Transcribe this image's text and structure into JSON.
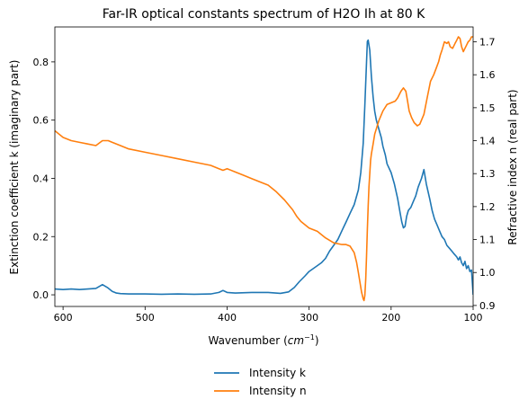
{
  "chart_data": {
    "type": "line",
    "title": "Far-IR optical constants spectrum of H2O Ih at 80 K",
    "xlabel": "Wavenumber",
    "xlabel_unit": "cm",
    "xlabel_unit_exp": "−1",
    "ylabel": "Extinction coefficient k (imaginary part)",
    "ylabel_right": "Refractive index n (real part)",
    "xlim": [
      610,
      100
    ],
    "x_inverted": true,
    "ylim": [
      -0.04,
      0.92
    ],
    "ylim_right": [
      0.897,
      1.745
    ],
    "xticks": [
      600,
      500,
      400,
      300,
      200,
      100
    ],
    "yticks": [
      0.0,
      0.2,
      0.4,
      0.6,
      0.8
    ],
    "yticks_right": [
      0.9,
      1.0,
      1.1,
      1.2,
      1.3,
      1.4,
      1.5,
      1.6,
      1.7
    ],
    "legend_position": "below",
    "series": [
      {
        "name": "Intensity k",
        "axis": "left",
        "color": "#1f77b4",
        "x": [
          610,
          600,
          590,
          580,
          570,
          560,
          552,
          546,
          540,
          535,
          530,
          520,
          500,
          480,
          460,
          440,
          420,
          410,
          405,
          400,
          390,
          370,
          350,
          335,
          325,
          318,
          312,
          305,
          300,
          295,
          290,
          285,
          280,
          275,
          270,
          265,
          260,
          255,
          250,
          245,
          240,
          237,
          234,
          232,
          230,
          229,
          228,
          226,
          224,
          222,
          220,
          218,
          215,
          212,
          210,
          207,
          205,
          200,
          196,
          192,
          189,
          187,
          185,
          183,
          181,
          179,
          176,
          173,
          170,
          167,
          163,
          160,
          157,
          153,
          150,
          147,
          144,
          141,
          138,
          135,
          132,
          129,
          126,
          123,
          120,
          118,
          116,
          114,
          112,
          110,
          108,
          106,
          104,
          102,
          100
        ],
        "values": [
          0.02,
          0.018,
          0.02,
          0.018,
          0.02,
          0.022,
          0.035,
          0.025,
          0.012,
          0.006,
          0.004,
          0.003,
          0.003,
          0.002,
          0.003,
          0.002,
          0.003,
          0.008,
          0.015,
          0.008,
          0.006,
          0.008,
          0.008,
          0.005,
          0.01,
          0.025,
          0.045,
          0.065,
          0.08,
          0.09,
          0.1,
          0.11,
          0.125,
          0.15,
          0.17,
          0.19,
          0.22,
          0.25,
          0.28,
          0.31,
          0.36,
          0.42,
          0.52,
          0.65,
          0.8,
          0.87,
          0.875,
          0.84,
          0.75,
          0.68,
          0.63,
          0.6,
          0.57,
          0.54,
          0.51,
          0.48,
          0.45,
          0.42,
          0.38,
          0.33,
          0.28,
          0.25,
          0.23,
          0.235,
          0.27,
          0.29,
          0.3,
          0.32,
          0.34,
          0.37,
          0.4,
          0.43,
          0.38,
          0.33,
          0.29,
          0.26,
          0.24,
          0.22,
          0.2,
          0.19,
          0.17,
          0.16,
          0.15,
          0.14,
          0.13,
          0.12,
          0.13,
          0.11,
          0.1,
          0.115,
          0.09,
          0.1,
          0.08,
          0.085,
          0.0
        ]
      },
      {
        "name": "Intensity n",
        "axis": "right",
        "color": "#ff7f0e",
        "x": [
          610,
          600,
          590,
          580,
          570,
          560,
          552,
          545,
          540,
          530,
          520,
          500,
          480,
          460,
          440,
          420,
          410,
          405,
          400,
          390,
          380,
          370,
          360,
          350,
          340,
          330,
          320,
          315,
          310,
          300,
          290,
          280,
          270,
          260,
          255,
          250,
          245,
          242,
          240,
          238,
          236,
          234,
          233,
          232,
          231,
          230,
          229,
          228,
          227,
          226,
          225,
          224,
          222,
          220,
          215,
          210,
          205,
          200,
          195,
          192,
          188,
          185,
          182,
          180,
          178,
          175,
          172,
          168,
          165,
          160,
          156,
          152,
          148,
          145,
          142,
          140,
          138,
          135,
          132,
          130,
          128,
          125,
          122,
          120,
          118,
          116,
          114,
          112,
          110,
          108,
          106,
          104,
          102,
          100
        ],
        "values": [
          1.43,
          1.41,
          1.4,
          1.395,
          1.39,
          1.385,
          1.4,
          1.4,
          1.395,
          1.385,
          1.375,
          1.365,
          1.355,
          1.345,
          1.335,
          1.325,
          1.315,
          1.31,
          1.315,
          1.305,
          1.295,
          1.285,
          1.275,
          1.265,
          1.245,
          1.22,
          1.19,
          1.17,
          1.155,
          1.135,
          1.125,
          1.105,
          1.09,
          1.085,
          1.085,
          1.08,
          1.06,
          1.03,
          1.0,
          0.97,
          0.94,
          0.92,
          0.915,
          0.93,
          0.98,
          1.05,
          1.13,
          1.2,
          1.26,
          1.3,
          1.34,
          1.36,
          1.39,
          1.42,
          1.46,
          1.49,
          1.51,
          1.515,
          1.52,
          1.53,
          1.55,
          1.56,
          1.55,
          1.52,
          1.49,
          1.47,
          1.455,
          1.445,
          1.45,
          1.48,
          1.53,
          1.58,
          1.6,
          1.62,
          1.64,
          1.66,
          1.675,
          1.7,
          1.695,
          1.7,
          1.685,
          1.68,
          1.695,
          1.705,
          1.715,
          1.71,
          1.685,
          1.67,
          1.68,
          1.69,
          1.7,
          1.705,
          1.715,
          1.715
        ]
      }
    ]
  }
}
